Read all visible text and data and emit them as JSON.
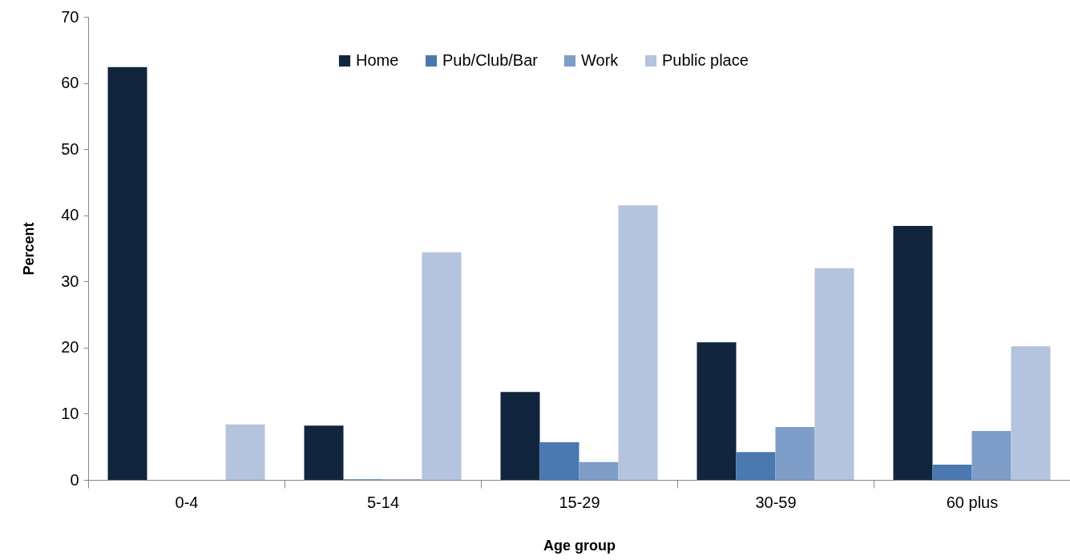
{
  "chart_data": {
    "type": "bar",
    "xlabel": "Age group",
    "ylabel": "Percent",
    "categories": [
      "0-4",
      "5-14",
      "15-29",
      "30-59",
      "60 plus"
    ],
    "series": [
      {
        "name": "Home",
        "color": "#12253f",
        "values": [
          62.4,
          8.2,
          13.3,
          20.8,
          38.4
        ]
      },
      {
        "name": "Pub/Club/Bar",
        "color": "#4a78b0",
        "values": [
          0,
          0.1,
          5.7,
          4.2,
          2.3
        ]
      },
      {
        "name": "Work",
        "color": "#7f9dc9",
        "values": [
          0,
          0.1,
          2.7,
          8.0,
          7.4
        ]
      },
      {
        "name": "Public place",
        "color": "#b4c3de",
        "values": [
          8.4,
          34.4,
          41.5,
          32.0,
          20.2
        ]
      }
    ],
    "ylim": [
      0,
      70
    ],
    "yticks": [
      0,
      10,
      20,
      30,
      40,
      50,
      60,
      70
    ],
    "grid": false,
    "legend": "top"
  }
}
